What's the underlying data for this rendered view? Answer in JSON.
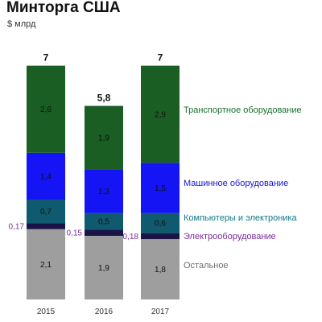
{
  "title": "Минторга США",
  "subtitle": "$ млрд",
  "chart_data": {
    "type": "bar",
    "stacked": true,
    "categories": [
      "2015",
      "2016",
      "2017"
    ],
    "totals": [
      "7",
      "5,8",
      "7"
    ],
    "series": [
      {
        "name": "Остальное",
        "color": "#9e9e9e",
        "values": [
          2.1,
          1.9,
          1.8
        ],
        "labels": [
          "2,1",
          "1,9",
          "1,8"
        ]
      },
      {
        "name": "Электрооборудование",
        "color": "#1a1446",
        "values": [
          0.17,
          0.15,
          0.18
        ],
        "labels": [
          "0,17",
          "0,15",
          "0,18"
        ]
      },
      {
        "name": "Компьютеры и электроника",
        "color": "#0f5a6e",
        "values": [
          0.7,
          0.5,
          0.6
        ],
        "labels": [
          "0,7",
          "0,5",
          "0,6"
        ]
      },
      {
        "name": "Машинное оборудование",
        "color": "#1414f5",
        "values": [
          1.4,
          1.3,
          1.5
        ],
        "labels": [
          "1,4",
          "1,3",
          "1,5"
        ]
      },
      {
        "name": "Транспортное оборудование",
        "color": "#1a5e24",
        "values": [
          2.6,
          1.9,
          2.9
        ],
        "labels": [
          "2,6",
          "1,9",
          "2,9"
        ]
      }
    ],
    "legend_colors": [
      "#6f6f6f",
      "#7a2a9a",
      "#0e7a8a",
      "#1414d8",
      "#1a6e2a"
    ],
    "legend_placement": "right",
    "side_label_color": "#7a2a9a",
    "grid": false
  }
}
